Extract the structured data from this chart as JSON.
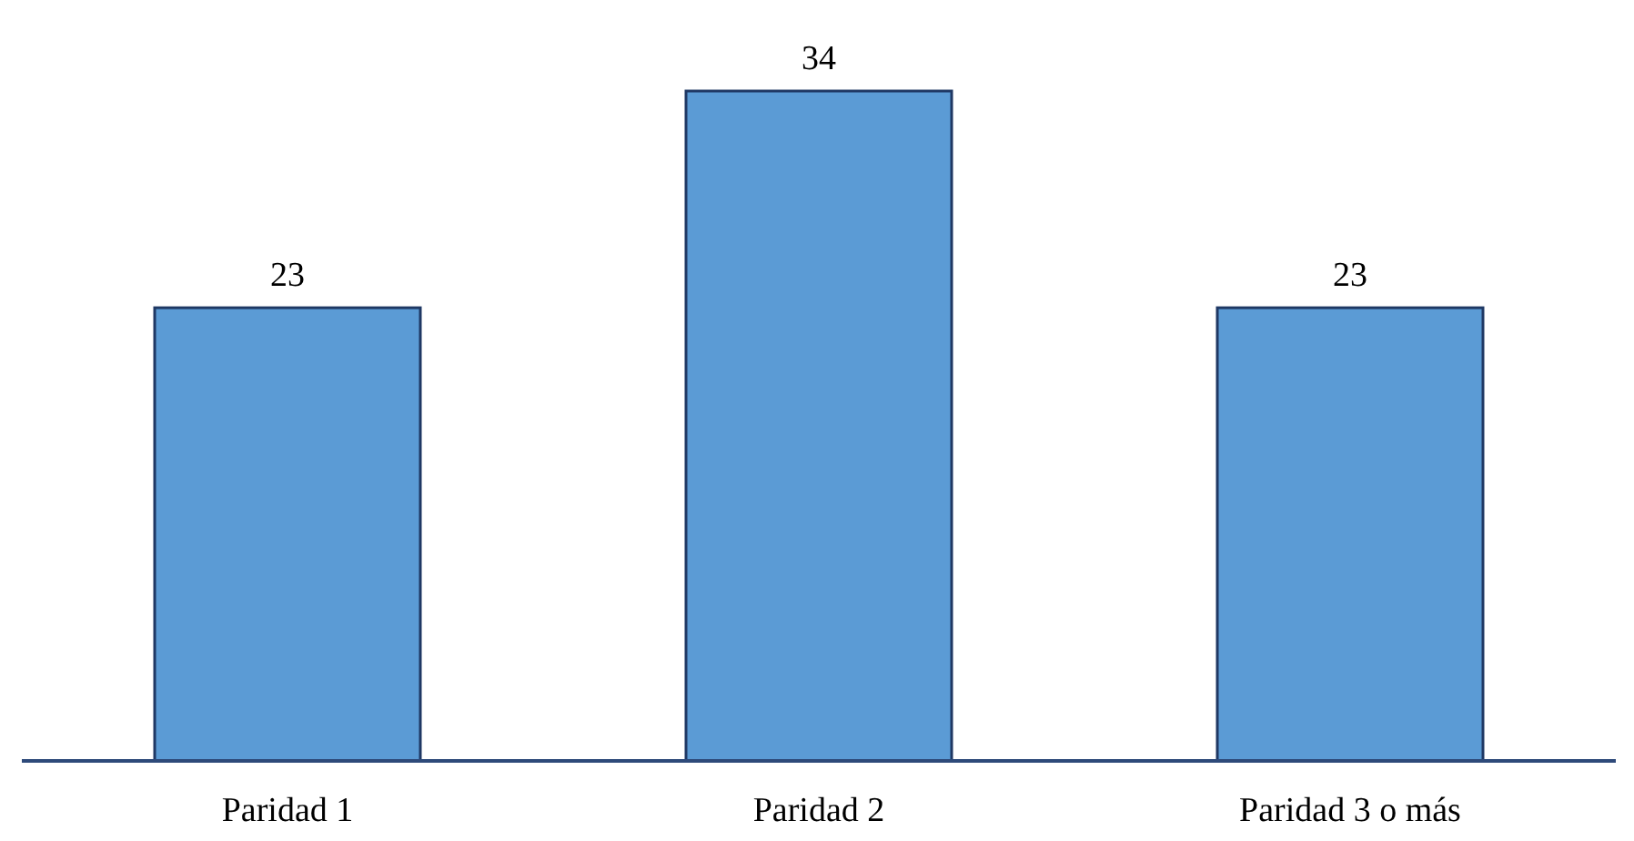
{
  "chart_data": {
    "type": "bar",
    "categories": [
      "Paridad 1",
      "Paridad 2",
      "Paridad 3 o más"
    ],
    "values": [
      23,
      34,
      23
    ],
    "color": "#5b9bd5",
    "data_labels": true
  }
}
